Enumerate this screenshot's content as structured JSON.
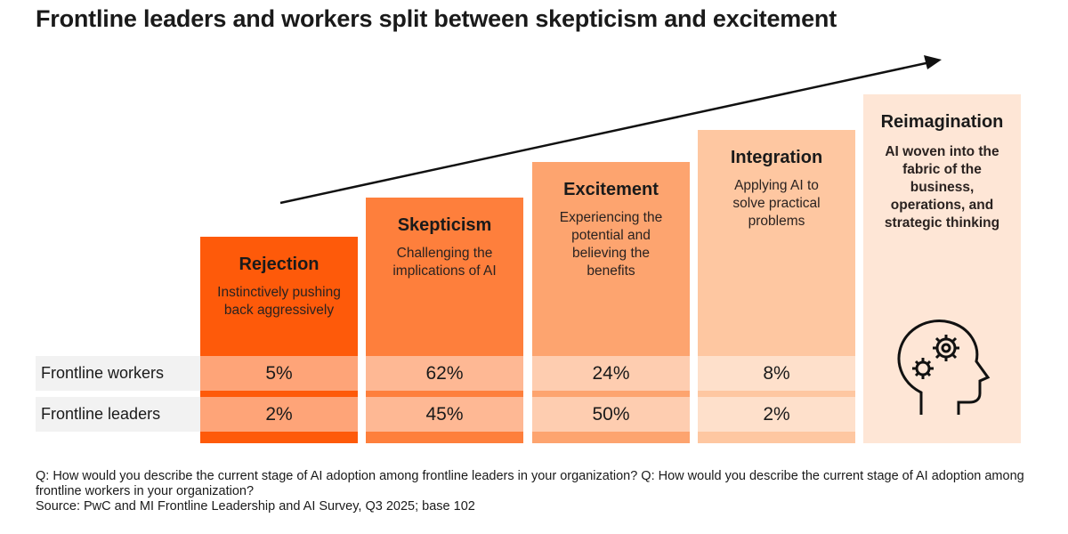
{
  "title": "Frontline leaders and workers split between skepticism and excitement",
  "stages": [
    {
      "name": "Rejection",
      "description": "Instinctively pushing back aggressively",
      "color": "#fe5a0a"
    },
    {
      "name": "Skepticism",
      "description": "Challenging the implications of AI",
      "color": "#fe7f3c"
    },
    {
      "name": "Excitement",
      "description": "Experiencing the potential and believing the benefits",
      "color": "#fda46f"
    },
    {
      "name": "Integration",
      "description": "Applying AI to solve practical problems",
      "color": "#fec7a1"
    },
    {
      "name": "Reimagination",
      "description": "AI woven into the fabric of the business, operations, and strategic thinking",
      "color": "#fee6d6",
      "icon": "head-gears-icon"
    }
  ],
  "rows": [
    {
      "label": "Frontline workers",
      "values": [
        "5%",
        "62%",
        "24%",
        "8%"
      ]
    },
    {
      "label": "Frontline leaders",
      "values": [
        "2%",
        "45%",
        "50%",
        "2%"
      ]
    }
  ],
  "footnote": {
    "question": "Q: How would you describe the current stage of AI adoption among frontline leaders in your organization? Q: How would you describe the current stage of AI adoption among frontline workers in your organization?",
    "source": "Source: PwC and MI Frontline Leadership and AI Survey, Q3 2025; base 102"
  }
}
